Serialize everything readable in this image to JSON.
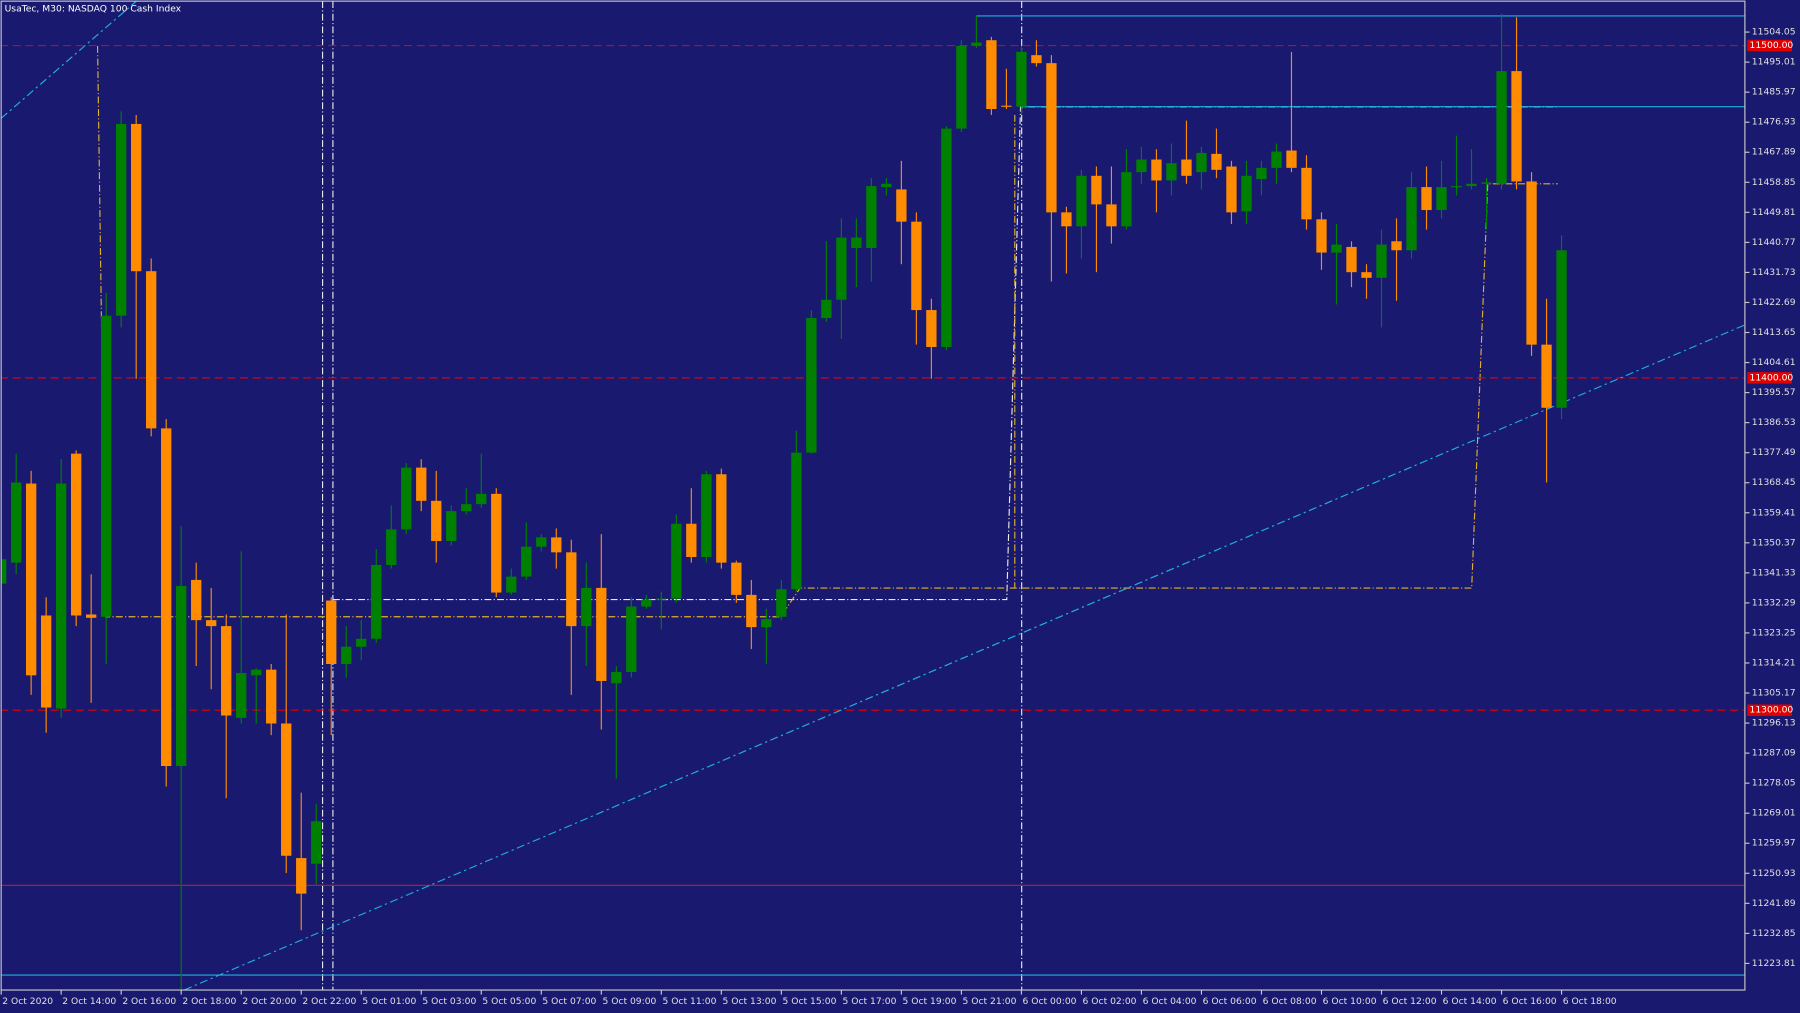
{
  "chart_data": {
    "type": "candlestick",
    "title": "UsaTec, M30:  NASDAQ 100 Cash Index",
    "up_color": "#008000",
    "down_color": "#ff8c00",
    "background": "#191970",
    "open": [
      11338.1,
      11344.4,
      11368.2,
      11328.5,
      11300.5,
      11377.2,
      11328.8,
      11328.1,
      11418.7,
      11476.4,
      11432.1,
      11384.8,
      11283.2,
      11339.2,
      11327.1,
      11325.3,
      11297.7,
      11310.5,
      11312.2,
      11296.0,
      11255.5,
      11253.8,
      11333.0,
      11313.9,
      11319.1,
      11321.5,
      11343.7,
      11354.4,
      11373.0,
      11363.0,
      11350.9,
      11359.9,
      11362.0,
      11365.1,
      11335.4,
      11340.2,
      11349.2,
      11352.0,
      11347.5,
      11325.3,
      11336.8,
      11308.1,
      11311.5,
      11331.2,
      11333.3,
      11333.6,
      11356.1,
      11346.1,
      11371.0,
      11344.4,
      11334.7,
      11325.0,
      11328.1,
      11336.4,
      11377.5,
      11418.0,
      11423.5,
      11439.1,
      11439.1,
      11457.4,
      11456.7,
      11447.0,
      11420.4,
      11409.3,
      11475.0,
      11499.9,
      11501.6,
      11481.9,
      11481.6,
      11497.1,
      11494.7,
      11449.8,
      11445.6,
      11460.8,
      11452.2,
      11445.6,
      11461.9,
      11465.7,
      11459.4,
      11465.7,
      11461.9,
      11467.4,
      11463.6,
      11450.1,
      11459.8,
      11463.2,
      11468.4,
      11463.2,
      11447.7,
      11437.7,
      11439.4,
      11431.8,
      11430.1,
      11441.1,
      11438.4,
      11457.4,
      11450.5,
      11457.4,
      11457.7,
      11458.4,
      11458.4,
      11492.3,
      11459.1,
      11410.0,
      11391.0
    ],
    "high": [
      11347.8,
      11377.2,
      11372.0,
      11334.0,
      11375.5,
      11378.2,
      11340.9,
      11425.6,
      11480.2,
      11479.1,
      11435.9,
      11387.6,
      11355.4,
      11344.4,
      11336.8,
      11328.8,
      11347.8,
      11312.6,
      11313.9,
      11328.8,
      11275.2,
      11271.8,
      11334.0,
      11325.3,
      11327.1,
      11348.5,
      11361.6,
      11374.4,
      11375.5,
      11372.0,
      11361.6,
      11366.8,
      11377.2,
      11366.8,
      11342.6,
      11356.5,
      11353.0,
      11354.7,
      11351.3,
      11344.4,
      11353.0,
      11313.3,
      11334.0,
      11334.7,
      11335.7,
      11358.9,
      11366.8,
      11372.0,
      11372.7,
      11345.0,
      11339.2,
      11330.5,
      11339.2,
      11384.1,
      11420.4,
      11441.1,
      11448.0,
      11448.0,
      11460.1,
      11460.1,
      11465.3,
      11449.8,
      11423.8,
      11475.7,
      11501.6,
      11508.9,
      11502.6,
      11493.0,
      11499.9,
      11501.6,
      11497.1,
      11451.5,
      11462.6,
      11463.6,
      11463.6,
      11468.8,
      11469.5,
      11468.8,
      11470.5,
      11477.4,
      11469.5,
      11475.0,
      11465.3,
      11465.3,
      11465.3,
      11470.5,
      11498.1,
      11467.0,
      11449.8,
      11446.3,
      11441.1,
      11434.2,
      11444.6,
      11448.0,
      11461.9,
      11463.6,
      11465.3,
      11472.9,
      11468.8,
      11460.1,
      11509.6,
      11508.5,
      11461.9,
      11423.8,
      11442.9
    ],
    "low": [
      11336.8,
      11340.9,
      11304.6,
      11293.2,
      11297.7,
      11325.3,
      11302.2,
      11313.9,
      11415.2,
      11399.7,
      11382.4,
      11277.0,
      11215.8,
      11313.3,
      11306.3,
      11273.5,
      11296.0,
      11296.0,
      11292.5,
      11251.0,
      11233.8,
      11247.6,
      11292.5,
      11309.8,
      11315.0,
      11320.2,
      11342.6,
      11353.0,
      11359.9,
      11344.4,
      11349.5,
      11358.9,
      11360.9,
      11334.0,
      11334.7,
      11339.2,
      11347.8,
      11342.6,
      11304.6,
      11313.3,
      11294.2,
      11279.4,
      11309.8,
      11330.5,
      11324.3,
      11332.3,
      11344.4,
      11344.4,
      11342.6,
      11332.3,
      11318.4,
      11313.9,
      11327.1,
      11335.7,
      11377.2,
      11416.9,
      11411.7,
      11427.3,
      11429.0,
      11454.9,
      11434.2,
      11410.0,
      11399.7,
      11408.3,
      11474.0,
      11499.2,
      11479.1,
      11480.9,
      11479.1,
      11493.7,
      11429.0,
      11431.4,
      11435.9,
      11431.8,
      11440.4,
      11444.6,
      11458.4,
      11449.8,
      11454.9,
      11458.4,
      11456.7,
      11460.1,
      11446.3,
      11446.3,
      11454.9,
      11458.4,
      11461.9,
      11444.6,
      11432.5,
      11422.1,
      11427.3,
      11423.8,
      11415.2,
      11423.2,
      11435.9,
      11444.6,
      11448.0,
      11454.9,
      11456.7,
      11444.6,
      11456.7,
      11456.7,
      11406.6,
      11368.5,
      11387.6
    ],
    "close": [
      11345.4,
      11368.5,
      11310.5,
      11300.8,
      11368.2,
      11328.5,
      11327.8,
      11418.7,
      11476.4,
      11432.1,
      11384.8,
      11283.2,
      11337.4,
      11327.1,
      11325.3,
      11298.4,
      11311.2,
      11312.2,
      11296.0,
      11256.2,
      11244.8,
      11266.6,
      11313.9,
      11319.1,
      11321.5,
      11343.7,
      11354.4,
      11373.0,
      11363.0,
      11350.9,
      11359.9,
      11362.0,
      11365.1,
      11335.4,
      11340.2,
      11349.2,
      11352.0,
      11347.5,
      11325.3,
      11336.8,
      11308.8,
      11311.5,
      11331.2,
      11333.3,
      11333.6,
      11356.1,
      11346.1,
      11371.0,
      11344.4,
      11334.7,
      11325.0,
      11327.4,
      11336.4,
      11377.5,
      11418.0,
      11423.5,
      11442.2,
      11442.2,
      11457.7,
      11458.4,
      11447.0,
      11420.4,
      11409.3,
      11475.0,
      11499.9,
      11500.9,
      11480.9,
      11481.6,
      11498.1,
      11494.7,
      11449.8,
      11445.6,
      11460.8,
      11452.2,
      11445.6,
      11461.9,
      11465.7,
      11459.4,
      11464.6,
      11460.8,
      11467.7,
      11462.6,
      11449.8,
      11460.8,
      11463.2,
      11468.1,
      11463.2,
      11447.7,
      11437.7,
      11440.1,
      11431.8,
      11430.1,
      11440.1,
      11438.4,
      11457.4,
      11450.5,
      11457.4,
      11457.7,
      11458.4,
      11458.8,
      11492.3,
      11459.1,
      11410.0,
      11391.0,
      11438.4
    ],
    "xticks": [
      {
        "value": 0,
        "label": "2 Oct 2020"
      },
      {
        "value": 4,
        "label": "2 Oct 14:00"
      },
      {
        "value": 8,
        "label": "2 Oct 16:00"
      },
      {
        "value": 12,
        "label": "2 Oct 18:00"
      },
      {
        "value": 16,
        "label": "2 Oct 20:00"
      },
      {
        "value": 20,
        "label": "2 Oct 22:00"
      },
      {
        "value": 24,
        "label": "5 Oct 01:00"
      },
      {
        "value": 28,
        "label": "5 Oct 03:00"
      },
      {
        "value": 32,
        "label": "5 Oct 05:00"
      },
      {
        "value": 36,
        "label": "5 Oct 07:00"
      },
      {
        "value": 40,
        "label": "5 Oct 09:00"
      },
      {
        "value": 44,
        "label": "5 Oct 11:00"
      },
      {
        "value": 48,
        "label": "5 Oct 13:00"
      },
      {
        "value": 52,
        "label": "5 Oct 15:00"
      },
      {
        "value": 56,
        "label": "5 Oct 17:00"
      },
      {
        "value": 60,
        "label": "5 Oct 19:00"
      },
      {
        "value": 64,
        "label": "5 Oct 21:00"
      },
      {
        "value": 68,
        "label": "6 Oct 00:00"
      },
      {
        "value": 72,
        "label": "6 Oct 02:00"
      },
      {
        "value": 76,
        "label": "6 Oct 04:00"
      },
      {
        "value": 80,
        "label": "6 Oct 06:00"
      },
      {
        "value": 84,
        "label": "6 Oct 08:00"
      },
      {
        "value": 88,
        "label": "6 Oct 10:00"
      },
      {
        "value": 92,
        "label": "6 Oct 12:00"
      },
      {
        "value": 96,
        "label": "6 Oct 14:00"
      },
      {
        "value": 100,
        "label": "6 Oct 16:00"
      },
      {
        "value": 104,
        "label": "6 Oct 18:00"
      }
    ],
    "ylim": [
      11215.8,
      11513.7
    ],
    "yticks": [
      11504.05,
      11495.01,
      11485.97,
      11476.93,
      11467.89,
      11458.85,
      11449.81,
      11440.77,
      11431.73,
      11422.69,
      11413.65,
      11404.61,
      11395.57,
      11386.53,
      11377.49,
      11368.45,
      11359.41,
      11350.37,
      11341.33,
      11332.29,
      11323.25,
      11314.21,
      11305.17,
      11296.13,
      11287.09,
      11278.05,
      11269.01,
      11259.97,
      11250.93,
      11241.89,
      11232.85,
      11223.81
    ],
    "levels": [
      {
        "value": 11500,
        "label": "11500.00",
        "color": "#e00000"
      },
      {
        "value": 11400,
        "label": "11400.00",
        "color": "#e00000"
      },
      {
        "value": 11300,
        "label": "11300.00",
        "color": "#e00000"
      }
    ],
    "hlines": [
      {
        "value": 11247.3,
        "from": 0,
        "color": "#c02020"
      },
      {
        "value": 11220.3,
        "from": 0,
        "color": "#20b0e0"
      },
      {
        "value": 11508.9,
        "from": 65,
        "color": "#20b0e0"
      },
      {
        "value": 11481.6,
        "from": 68,
        "color": "#20b0e0"
      }
    ],
    "trendlines": [
      {
        "x": [
          12.2,
          116.2
        ],
        "y": [
          11215.8,
          11415.9
        ],
        "color": "#20b0e0"
      },
      {
        "x": [
          0,
          9.1
        ],
        "y": [
          11478.1,
          11513.7
        ],
        "color": "#20b0e0"
      }
    ]
  }
}
